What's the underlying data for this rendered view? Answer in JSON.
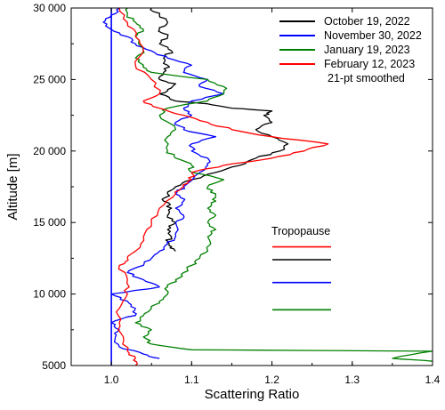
{
  "chart_data": {
    "type": "line",
    "xlabel": "Scattering Ratio",
    "ylabel": "Altitude [m]",
    "xlim": [
      0.95,
      1.4
    ],
    "ylim": [
      5000,
      30000
    ],
    "xticks": [
      1.0,
      1.1,
      1.2,
      1.3,
      1.4
    ],
    "xtick_labels": [
      "1.0",
      "1.1",
      "1.2",
      "1.3",
      "1.4"
    ],
    "yticks": [
      5000,
      10000,
      15000,
      20000,
      25000,
      30000
    ],
    "ytick_labels": [
      "5000",
      "10 000",
      "15 000",
      "20 000",
      "25 000",
      "30 000"
    ],
    "grid": false,
    "legend_position": "top-right",
    "legend_note": "21-pt smoothed",
    "reference_line": {
      "x": 1.0,
      "color": "#0000ff"
    },
    "series": [
      {
        "name": "October 19, 2022",
        "color": "#000000",
        "points": [
          [
            1.08,
            13000
          ],
          [
            1.075,
            13300
          ],
          [
            1.07,
            13700
          ],
          [
            1.075,
            14000
          ],
          [
            1.07,
            14500
          ],
          [
            1.08,
            15000
          ],
          [
            1.07,
            15500
          ],
          [
            1.075,
            16000
          ],
          [
            1.065,
            16500
          ],
          [
            1.07,
            17000
          ],
          [
            1.08,
            17500
          ],
          [
            1.1,
            18000
          ],
          [
            1.13,
            18500
          ],
          [
            1.16,
            19000
          ],
          [
            1.18,
            19500
          ],
          [
            1.21,
            20000
          ],
          [
            1.22,
            20500
          ],
          [
            1.2,
            21000
          ],
          [
            1.18,
            21500
          ],
          [
            1.2,
            22000
          ],
          [
            1.19,
            22500
          ],
          [
            1.2,
            22800
          ],
          [
            1.15,
            23000
          ],
          [
            1.12,
            23300
          ],
          [
            1.08,
            23500
          ],
          [
            1.06,
            24000
          ],
          [
            1.07,
            24300
          ],
          [
            1.08,
            24700
          ],
          [
            1.06,
            25000
          ],
          [
            1.065,
            25500
          ],
          [
            1.07,
            26000
          ],
          [
            1.065,
            26500
          ],
          [
            1.075,
            27000
          ],
          [
            1.06,
            27500
          ],
          [
            1.07,
            28000
          ],
          [
            1.06,
            28500
          ],
          [
            1.07,
            29000
          ],
          [
            1.06,
            29500
          ],
          [
            1.05,
            30000
          ]
        ]
      },
      {
        "name": "November 30, 2022",
        "color": "#0000ff",
        "points": [
          [
            1.06,
            5500
          ],
          [
            1.04,
            5800
          ],
          [
            1.01,
            6300
          ],
          [
            1.005,
            7000
          ],
          [
            1.01,
            7500
          ],
          [
            1.0,
            8000
          ],
          [
            1.03,
            8500
          ],
          [
            1.03,
            9000
          ],
          [
            1.02,
            9500
          ],
          [
            1.0,
            10000
          ],
          [
            1.06,
            10500
          ],
          [
            1.04,
            11000
          ],
          [
            1.02,
            11500
          ],
          [
            1.04,
            12000
          ],
          [
            1.05,
            12500
          ],
          [
            1.06,
            13000
          ],
          [
            1.07,
            13500
          ],
          [
            1.08,
            14000
          ],
          [
            1.08,
            15000
          ],
          [
            1.09,
            15500
          ],
          [
            1.08,
            16000
          ],
          [
            1.09,
            16500
          ],
          [
            1.08,
            17000
          ],
          [
            1.09,
            17500
          ],
          [
            1.11,
            18500
          ],
          [
            1.12,
            19000
          ],
          [
            1.12,
            19500
          ],
          [
            1.1,
            20000
          ],
          [
            1.1,
            20500
          ],
          [
            1.13,
            21000
          ],
          [
            1.09,
            21500
          ],
          [
            1.08,
            22000
          ],
          [
            1.1,
            22500
          ],
          [
            1.09,
            23000
          ],
          [
            1.1,
            23500
          ],
          [
            1.14,
            24000
          ],
          [
            1.11,
            24500
          ],
          [
            1.12,
            25000
          ],
          [
            1.09,
            25500
          ],
          [
            1.1,
            26000
          ],
          [
            1.07,
            26500
          ],
          [
            1.05,
            27000
          ],
          [
            1.03,
            27500
          ],
          [
            1.02,
            28000
          ],
          [
            1.0,
            28500
          ],
          [
            0.99,
            29000
          ],
          [
            1.0,
            29500
          ],
          [
            1.01,
            30000
          ]
        ]
      },
      {
        "name": "January 19, 2023",
        "color": "#008000",
        "points": [
          [
            1.4,
            5300
          ],
          [
            1.35,
            5500
          ],
          [
            1.4,
            6000
          ],
          [
            1.1,
            6100
          ],
          [
            1.05,
            6500
          ],
          [
            1.04,
            7000
          ],
          [
            1.05,
            7500
          ],
          [
            1.03,
            8000
          ],
          [
            1.04,
            8500
          ],
          [
            1.05,
            9000
          ],
          [
            1.06,
            9500
          ],
          [
            1.07,
            10000
          ],
          [
            1.07,
            10500
          ],
          [
            1.08,
            11000
          ],
          [
            1.09,
            11500
          ],
          [
            1.1,
            12000
          ],
          [
            1.11,
            12500
          ],
          [
            1.12,
            13000
          ],
          [
            1.12,
            14000
          ],
          [
            1.13,
            14500
          ],
          [
            1.12,
            15000
          ],
          [
            1.13,
            15500
          ],
          [
            1.12,
            16000
          ],
          [
            1.13,
            16500
          ],
          [
            1.13,
            17000
          ],
          [
            1.12,
            17500
          ],
          [
            1.14,
            18000
          ],
          [
            1.1,
            18500
          ],
          [
            1.1,
            19000
          ],
          [
            1.08,
            19500
          ],
          [
            1.07,
            20000
          ],
          [
            1.07,
            21000
          ],
          [
            1.08,
            21500
          ],
          [
            1.06,
            22500
          ],
          [
            1.07,
            23000
          ],
          [
            1.12,
            23500
          ],
          [
            1.14,
            24000
          ],
          [
            1.14,
            24500
          ],
          [
            1.12,
            25000
          ],
          [
            1.05,
            25500
          ],
          [
            1.04,
            26000
          ],
          [
            1.03,
            26500
          ],
          [
            1.04,
            27000
          ],
          [
            1.03,
            28000
          ],
          [
            1.04,
            28500
          ],
          [
            1.03,
            29000
          ],
          [
            1.02,
            29500
          ],
          [
            1.02,
            30000
          ]
        ]
      },
      {
        "name": "February 12, 2023",
        "color": "#ff0000",
        "points": [
          [
            1.03,
            5000
          ],
          [
            1.03,
            5500
          ],
          [
            1.02,
            6000
          ],
          [
            1.015,
            7000
          ],
          [
            1.01,
            8000
          ],
          [
            1.01,
            9000
          ],
          [
            1.02,
            10000
          ],
          [
            1.02,
            11000
          ],
          [
            1.01,
            12000
          ],
          [
            1.02,
            12500
          ],
          [
            1.03,
            13000
          ],
          [
            1.04,
            14000
          ],
          [
            1.05,
            15000
          ],
          [
            1.06,
            16000
          ],
          [
            1.08,
            17000
          ],
          [
            1.09,
            17500
          ],
          [
            1.1,
            18000
          ],
          [
            1.1,
            18500
          ],
          [
            1.14,
            19000
          ],
          [
            1.2,
            19500
          ],
          [
            1.24,
            20000
          ],
          [
            1.27,
            20500
          ],
          [
            1.2,
            21000
          ],
          [
            1.15,
            21500
          ],
          [
            1.12,
            22000
          ],
          [
            1.09,
            22500
          ],
          [
            1.06,
            23000
          ],
          [
            1.04,
            23500
          ],
          [
            1.06,
            24000
          ],
          [
            1.05,
            25000
          ],
          [
            1.03,
            26000
          ],
          [
            1.04,
            27000
          ],
          [
            1.03,
            28000
          ],
          [
            1.02,
            29000
          ],
          [
            1.01,
            30000
          ]
        ]
      }
    ],
    "tropopause": {
      "label": "Tropopause",
      "marks": [
        {
          "series": "February 12, 2023",
          "altitude": 13300,
          "color": "#ff0000"
        },
        {
          "series": "October 19, 2022",
          "altitude": 12400,
          "color": "#000000"
        },
        {
          "series": "November 30, 2022",
          "altitude": 10800,
          "color": "#0000ff"
        },
        {
          "series": "January 19, 2023",
          "altitude": 8900,
          "color": "#008000"
        }
      ]
    }
  }
}
